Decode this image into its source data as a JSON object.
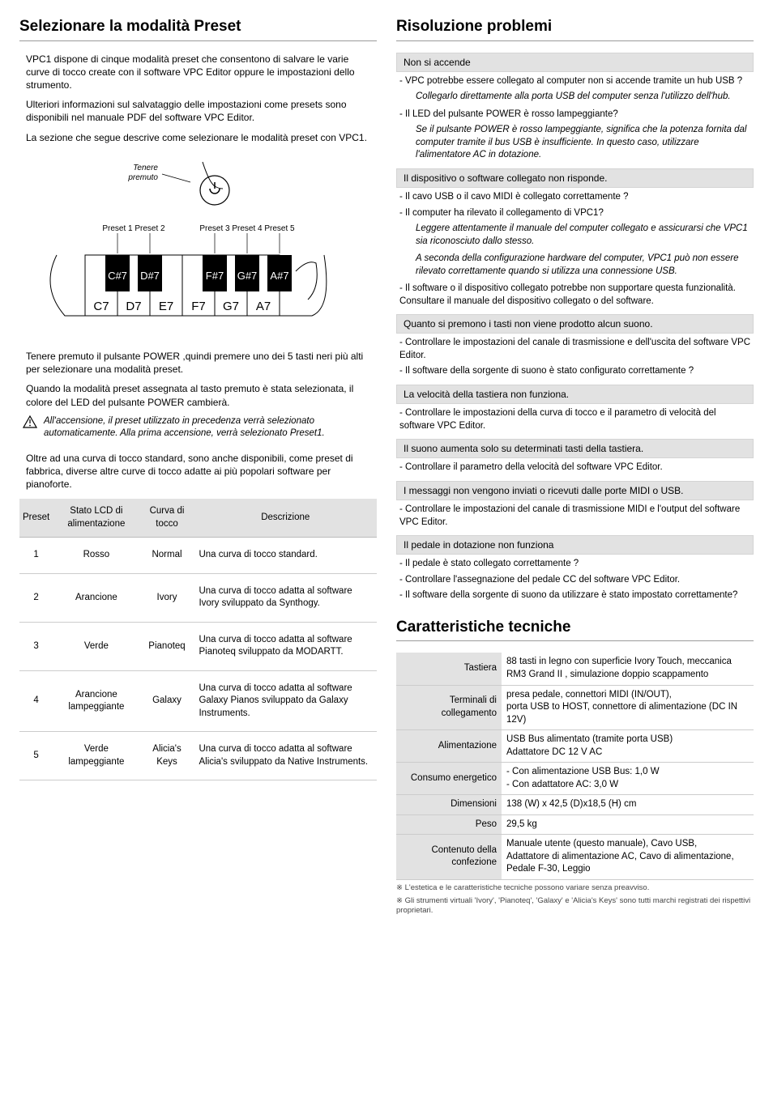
{
  "left": {
    "h1": "Selezionare la modalità Preset",
    "p1": "VPC1 dispone di cinque modalità preset che consentono di salvare le varie curve di tocco create con il software VPC Editor oppure le impostazioni dello strumento.",
    "p2": "Ulteriori informazioni sul salvataggio delle impostazioni come presets sono disponibili nel manuale PDF del software VPC Editor.",
    "p3": "La sezione che segue descrive come selezionare le modalità preset con VPC1.",
    "hold_label": "Tenere\npremuto",
    "preset_labels": [
      "Preset 1",
      "Preset 2",
      "Preset 3",
      "Preset 4",
      "Preset 5"
    ],
    "black_keys": [
      "C#7",
      "D#7",
      "F#7",
      "G#7",
      "A#7"
    ],
    "white_keys": [
      "C7",
      "D7",
      "E7",
      "F7",
      "G7",
      "A7"
    ],
    "p4": "Tenere premuto il pulsante POWER ,quindi premere uno dei 5 tasti neri più alti per selezionare una modalità preset.",
    "p5": "Quando la modalità preset assegnata al tasto premuto è stata selezionata, il colore del LED del pulsante POWER cambierà.",
    "caution": "All'accensione, il preset utilizzato in precedenza verrà selezionato automaticamente.  Alla prima accensione, verrà selezionato Preset1.",
    "p6": "Oltre ad una curva di tocco standard, sono anche disponibili, come preset di fabbrica, diverse altre curve di tocco adatte ai più popolari software per pianoforte.",
    "table": {
      "headers": [
        "Preset",
        "Stato LCD di alimentazione",
        "Curva di tocco",
        "Descrizione"
      ],
      "rows": [
        [
          "1",
          "Rosso",
          "Normal",
          "Una curva di tocco standard."
        ],
        [
          "2",
          "Arancione",
          "Ivory",
          "Una curva di tocco adatta al software Ivory sviluppato da Synthogy."
        ],
        [
          "3",
          "Verde",
          "Pianoteq",
          "Una curva di tocco adatta al software Pianoteq sviluppato da MODARTT."
        ],
        [
          "4",
          "Arancione lampeggiante",
          "Galaxy",
          "Una curva di tocco adatta al software Galaxy Pianos sviluppato da Galaxy Instruments."
        ],
        [
          "5",
          "Verde lampeggiante",
          "Alicia's Keys",
          "Una curva di tocco adatta al software Alicia's sviluppato da Native Instruments."
        ]
      ]
    }
  },
  "right": {
    "h1a": "Risoluzione problemi",
    "ts": [
      {
        "head": "Non si accende",
        "lines": [
          {
            "t": "line",
            "v": "- VPC potrebbe essere collegato al computer non si accende tramite un hub USB ?"
          },
          {
            "t": "note",
            "v": "Collegarlo direttamente alla porta USB del computer senza l'utilizzo dell'hub."
          },
          {
            "t": "line",
            "v": "- Il LED del pulsante POWER è rosso lampeggiante?"
          },
          {
            "t": "note",
            "v": "Se il pulsante POWER è rosso lampeggiante, significa che la potenza fornita dal computer tramite il bus USB è insufficiente. In questo caso, utilizzare l'alimentatore AC in dotazione."
          }
        ]
      },
      {
        "head": "Il dispositivo o software collegato non risponde.",
        "lines": [
          {
            "t": "line",
            "v": "- Il cavo USB o il cavo MIDI è collegato correttamente ?"
          },
          {
            "t": "line",
            "v": "- Il computer ha rilevato il collegamento di VPC1?"
          },
          {
            "t": "note",
            "v": "Leggere attentamente il manuale del computer collegato e assicurarsi che VPC1 sia riconosciuto dallo stesso."
          },
          {
            "t": "note",
            "v": "A seconda della configurazione hardware del computer, VPC1 può non essere rilevato correttamente quando si utilizza una connessione USB."
          },
          {
            "t": "line",
            "v": "- Il software o il dispositivo collegato potrebbe non supportare questa funzionalità. Consultare il manuale del dispositivo collegato o del software."
          }
        ]
      },
      {
        "head": "Quanto si premono i tasti non viene prodotto alcun suono.",
        "lines": [
          {
            "t": "line",
            "v": "- Controllare le impostazioni del canale di trasmissione e dell'uscita del software VPC Editor."
          },
          {
            "t": "line",
            "v": "- Il software della sorgente di suono è stato configurato correttamente ?"
          }
        ]
      },
      {
        "head": "La velocità della tastiera non funziona.",
        "lines": [
          {
            "t": "line",
            "v": "- Controllare le impostazioni della curva di tocco e il parametro di velocità del software VPC Editor."
          }
        ]
      },
      {
        "head": "Il suono aumenta solo su determinati tasti della tastiera.",
        "lines": [
          {
            "t": "line",
            "v": "- Controllare il parametro della velocità del software VPC Editor."
          }
        ]
      },
      {
        "head": "I messaggi non vengono inviati o ricevuti dalle porte MIDI o USB.",
        "lines": [
          {
            "t": "line",
            "v": "- Controllare le impostazioni del canale di trasmissione MIDI e l'output del software VPC Editor."
          }
        ]
      },
      {
        "head": "Il pedale in dotazione non funziona",
        "lines": [
          {
            "t": "line",
            "v": "- Il pedale è stato collegato correttamente ?"
          },
          {
            "t": "line",
            "v": "- Controllare l'assegnazione del pedale CC del software VPC Editor."
          },
          {
            "t": "line",
            "v": "- Il software della sorgente di suono da utilizzare è stato impostato correttamente?"
          }
        ]
      }
    ],
    "h1b": "Caratteristiche tecniche",
    "specs": [
      [
        "Tastiera",
        "88 tasti in legno con superficie Ivory Touch, meccanica RM3 Grand II , simulazione doppio scappamento"
      ],
      [
        "Terminali di collegamento",
        "presa pedale, connettori MIDI (IN/OUT),\nporta USB to HOST, connettore di alimentazione (DC IN 12V)"
      ],
      [
        "Alimentazione",
        "USB Bus alimentato (tramite porta USB)\nAdattatore DC 12 V AC"
      ],
      [
        "Consumo energetico",
        "- Con alimentazione USB Bus: 1,0 W\n- Con adattatore AC: 3,0 W"
      ],
      [
        "Dimensioni",
        "138 (W) x 42,5 (D)x18,5 (H) cm"
      ],
      [
        "Peso",
        "29,5 kg"
      ],
      [
        "Contenuto della confezione",
        "Manuale utente (questo manuale), Cavo USB,\nAdattatore di alimentazione AC, Cavo di alimentazione, Pedale F-30, Leggio"
      ]
    ],
    "foot1": "※ L'estetica e le caratteristiche tecniche possono variare senza preavviso.",
    "foot2": "※ Gli strumenti virtuali 'Ivory', 'Pianoteq', 'Galaxy' e 'Alicia's Keys' sono tutti marchi registrati dei rispettivi proprietari."
  }
}
